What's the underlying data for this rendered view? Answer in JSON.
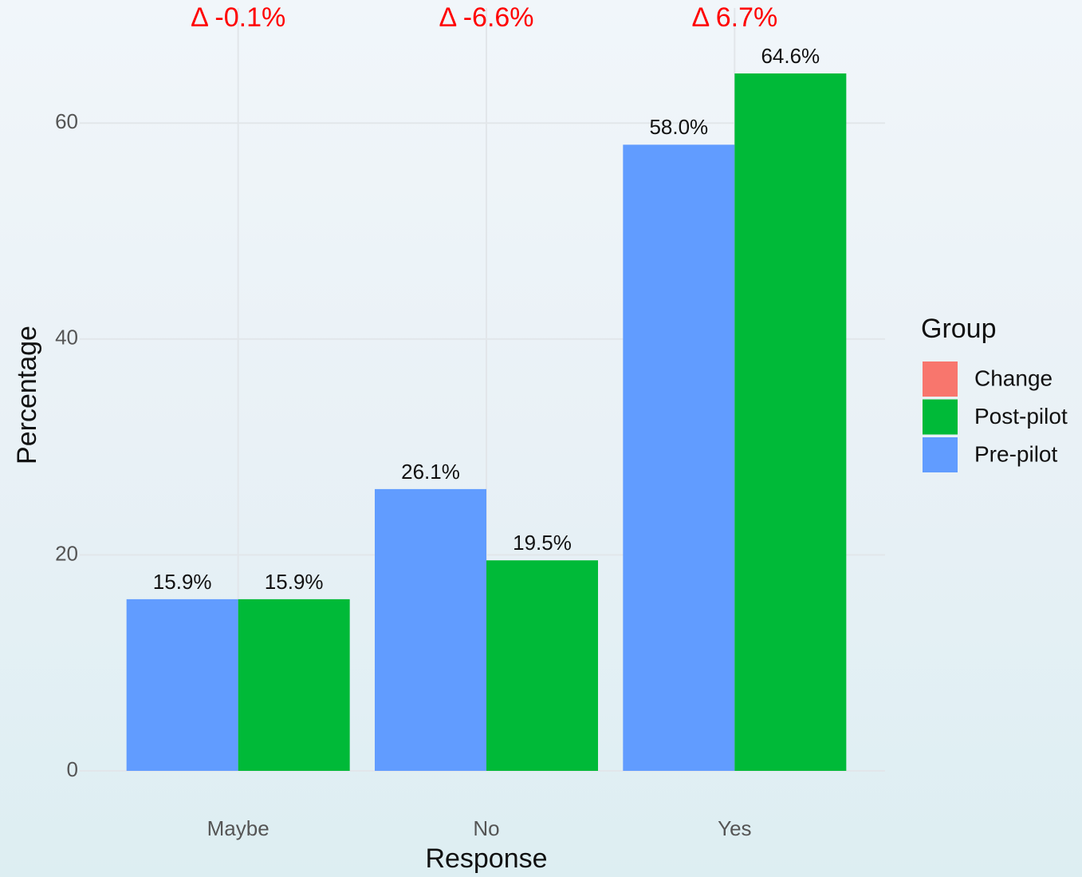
{
  "chart_data": {
    "type": "bar",
    "x_label": "Response",
    "y_label": "Percentage",
    "categories": [
      "Maybe",
      "No",
      "Yes"
    ],
    "legend_title": "Group",
    "legend_position": "right",
    "series": [
      {
        "name": "Change",
        "color": "#F8766D",
        "kind": "annotation",
        "label_color": "#ff0000",
        "values": [
          -0.1,
          -6.6,
          6.7
        ],
        "value_labels": [
          "Δ -0.1%",
          "Δ -6.6%",
          "Δ 6.7%"
        ]
      },
      {
        "name": "Post-pilot",
        "color": "#00BA38",
        "kind": "bar",
        "values": [
          15.9,
          19.5,
          64.6
        ],
        "value_labels": [
          "15.9%",
          "19.5%",
          "64.6%"
        ]
      },
      {
        "name": "Pre-pilot",
        "color": "#619CFF",
        "kind": "bar",
        "values": [
          15.9,
          26.1,
          58.0
        ],
        "value_labels": [
          "15.9%",
          "26.1%",
          "58.0%"
        ]
      }
    ],
    "ylim": [
      0,
      70
    ],
    "yticks": [
      0,
      20,
      40,
      60
    ],
    "grid": true
  }
}
